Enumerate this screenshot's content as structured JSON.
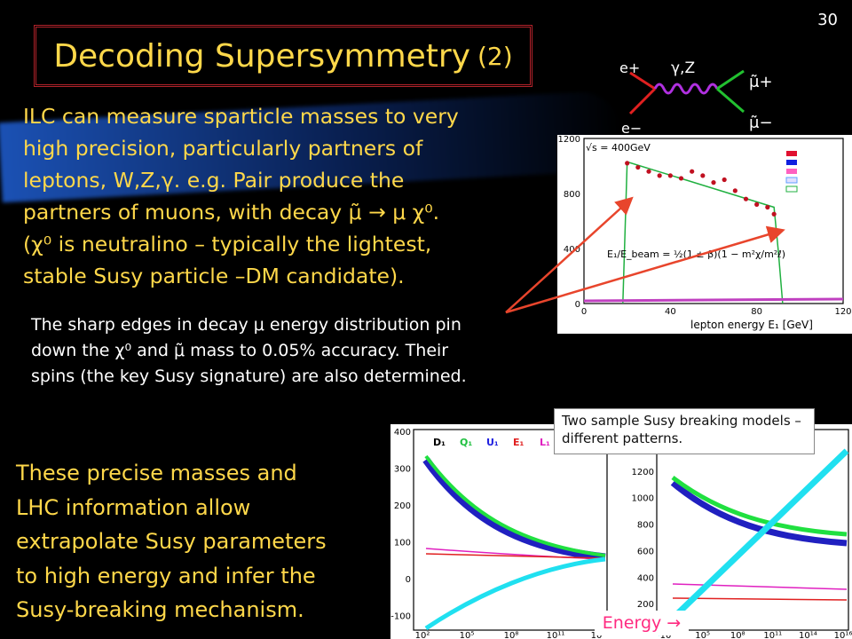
{
  "slide": {
    "number": "30",
    "title": "Decoding Supersymmetry",
    "title_paren": "(2)"
  },
  "main_text": {
    "line1": "ILC can measure sparticle masses to very",
    "line2": "high precision, particularly partners of",
    "line3": "leptons, W,Z,γ.    e.g. Pair produce the",
    "line4": "partners of muons, with decay μ̃ → μ χ⁰.",
    "line5": "(χ⁰ is neutralino – typically the lightest,",
    "line6": "stable Susy particle –DM candidate)."
  },
  "caption": {
    "line1": "The sharp edges in decay μ energy distribution pin",
    "line2": "down the χ⁰ and μ̃ mass to 0.05% accuracy.  Their",
    "line3": "spins (the key Susy signature) are also determined."
  },
  "bottom_text": {
    "line1": "These precise masses and",
    "line2": "LHC information allow",
    "line3": "extrapolate Susy parameters",
    "line4": "to high energy and infer the",
    "line5": "Susy-breaking mechanism."
  },
  "feynman": {
    "e_plus": "e+",
    "e_minus": "e−",
    "boson": "γ,Z",
    "smu_plus": "μ̃+",
    "smu_minus": "μ̃−"
  },
  "note_box": "Two sample Susy breaking models – different patterns.",
  "energy_label": "Energy →",
  "colors": {
    "title": "#ffd84a",
    "body_text": "#ffd84a",
    "frame": "#b2222a",
    "pointer_arrow": "#e8452c",
    "glow": "#1e5ac8"
  },
  "chart_data": [
    {
      "type": "line",
      "title": "",
      "annotation": "√s = 400GeV",
      "xlabel": "lepton energy E₁ [GeV]",
      "ylabel": "",
      "xticks": [
        "0",
        "40",
        "80",
        "120"
      ],
      "yticks": [
        "0",
        "400",
        "800",
        "1200"
      ],
      "xlim": [
        0,
        120
      ],
      "ylim": [
        0,
        1200
      ],
      "formula": "E₁/E_beam = ½(1 ± β)(1 − m²χ/m²ℓ)",
      "series": [
        {
          "name": "data",
          "x": [
            20,
            25,
            30,
            35,
            40,
            45,
            50,
            55,
            60,
            65,
            70,
            75,
            80,
            85,
            88
          ],
          "y": [
            1020,
            990,
            960,
            930,
            930,
            910,
            960,
            930,
            880,
            900,
            820,
            760,
            720,
            700,
            650
          ]
        },
        {
          "name": "signal",
          "x": [
            18,
            20,
            88,
            90,
            92
          ],
          "y": [
            0,
            1030,
            700,
            380,
            0
          ]
        }
      ]
    },
    {
      "type": "line",
      "title": "",
      "legend": [
        "D₁",
        "Q₁",
        "U₁",
        "E₁",
        "L₁"
      ],
      "xlabel": "",
      "ylabel": "",
      "xticks": [
        "10²",
        "10⁵",
        "10⁸",
        "10¹¹",
        "10¹⁴"
      ],
      "yticks": [
        "-100",
        "0",
        "100",
        "200",
        "300",
        "400"
      ],
      "ylim": [
        -140,
        400
      ]
    },
    {
      "type": "line",
      "title": "",
      "xlabel": "",
      "ylabel": "",
      "xticks": [
        "10²",
        "10⁵",
        "10⁸",
        "10¹¹",
        "10¹⁴",
        "10¹⁶"
      ],
      "yticks": [
        "0",
        "200",
        "400",
        "600",
        "800",
        "1000",
        "1200",
        "1400"
      ],
      "ylim": [
        0,
        1500
      ]
    }
  ]
}
